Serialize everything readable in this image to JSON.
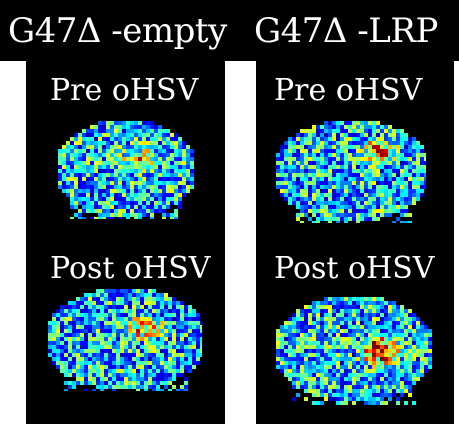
{
  "columns": [
    {
      "title": "G47Δ -empty",
      "pre_label": "Pre oHSV",
      "post_label": "Post oHSV"
    },
    {
      "title": "G47Δ -LRP",
      "pre_label": "Pre oHSV",
      "post_label": "Post oHSV"
    }
  ],
  "colors": {
    "background": "#000000",
    "text": "#ffffff",
    "colormap": [
      "#00007f",
      "#0040ff",
      "#00c0ff",
      "#40ffc0",
      "#c0ff40",
      "#ffc000",
      "#ff4000",
      "#7f0000"
    ]
  }
}
